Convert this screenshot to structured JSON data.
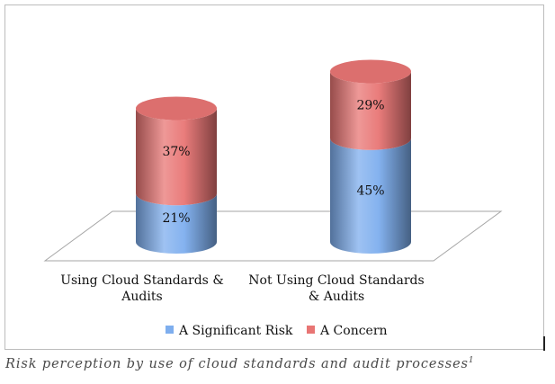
{
  "chart_data": {
    "type": "bar",
    "style": "stacked 3D cylinder",
    "categories": [
      [
        "Using Cloud Standards &",
        "Audits"
      ],
      [
        "Not Using Cloud Standards",
        "& Audits"
      ]
    ],
    "series": [
      {
        "name": "A Significant Risk",
        "values": [
          21,
          45
        ],
        "labels": [
          "21%",
          "45%"
        ],
        "color": "#7eaeee"
      },
      {
        "name": "A Concern",
        "values": [
          37,
          29
        ],
        "labels": [
          "37%",
          "29%"
        ],
        "color": "#e87574"
      }
    ],
    "legend_position": "bottom",
    "grid": false
  },
  "caption": {
    "text": "Risk perception by use of cloud standards and audit processes",
    "superscript": "1"
  }
}
